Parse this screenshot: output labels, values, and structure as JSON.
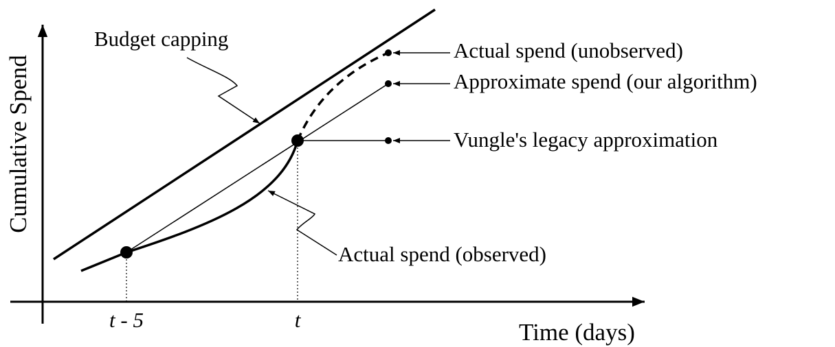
{
  "axes": {
    "y_label": "Cumulative Spend",
    "x_label": "Time (days)",
    "x_ticks": [
      "t - 5",
      "t"
    ]
  },
  "annotations": {
    "budget": "Budget capping",
    "unobserved": "Actual spend (unobserved)",
    "approximate": "Approximate spend (our algorithm)",
    "legacy": "Vungle's legacy approximation",
    "observed": "Actual spend (observed)"
  }
}
